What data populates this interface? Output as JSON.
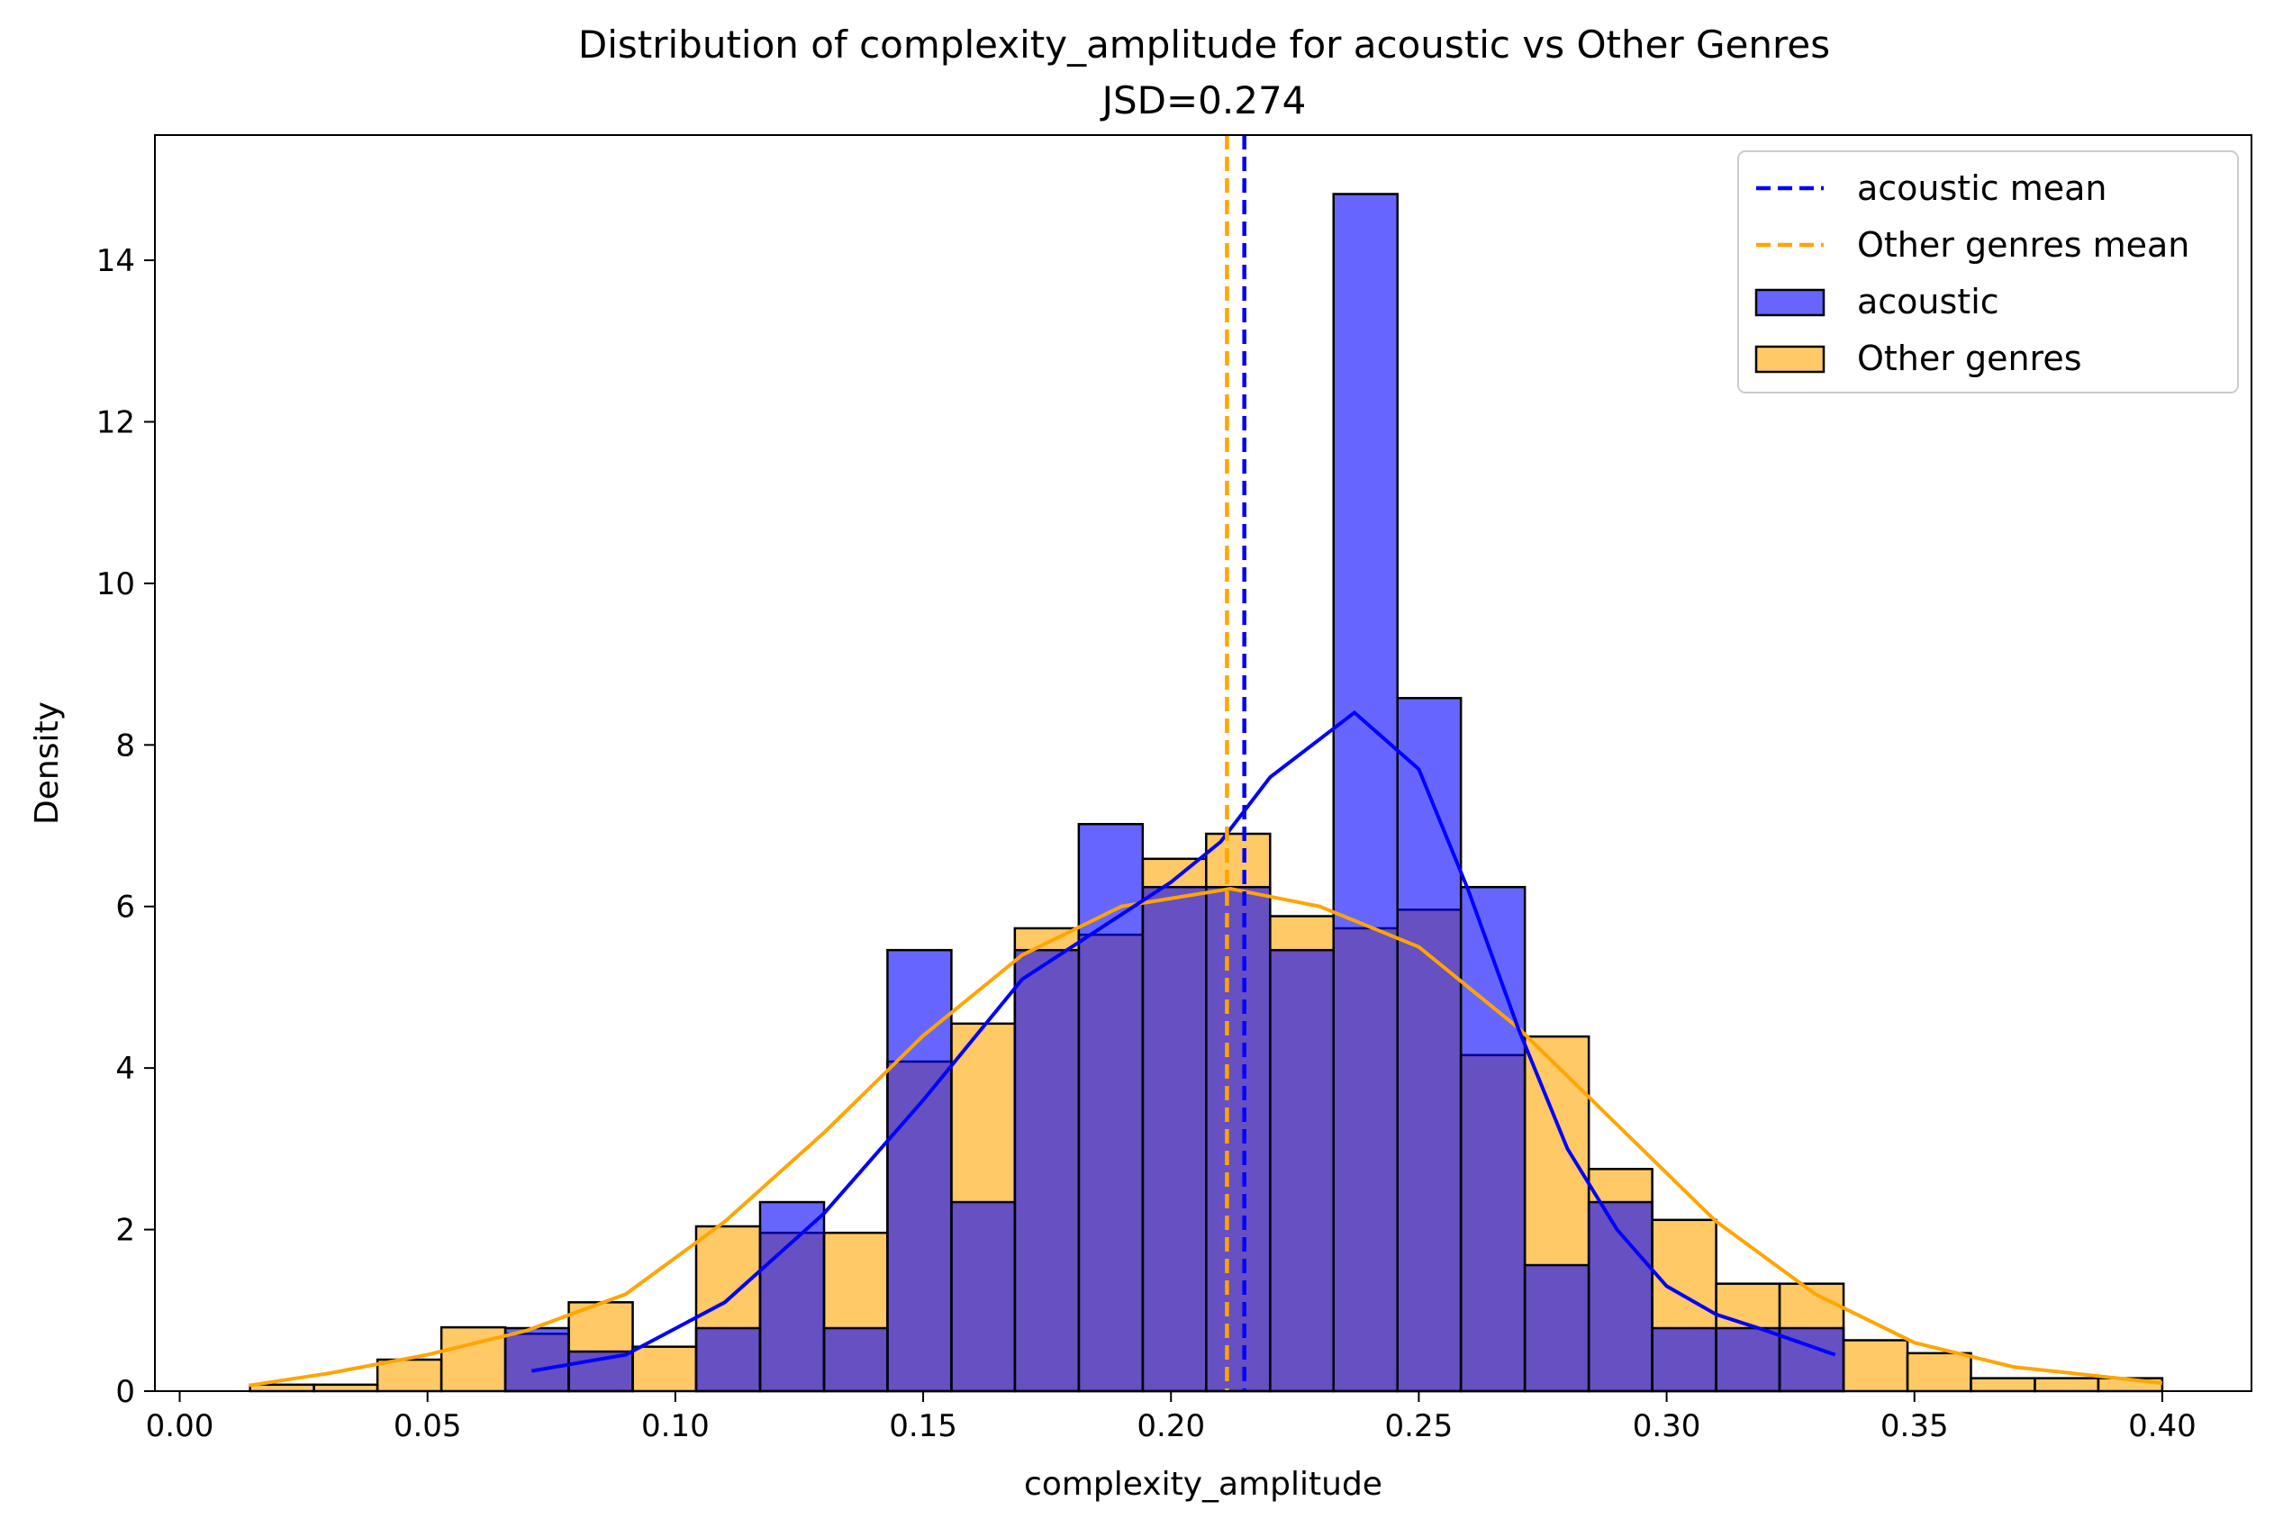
{
  "chart_data": {
    "type": "histogram",
    "title": "Distribution of complexity_amplitude for acoustic vs Other Genres",
    "subtitle": "JSD=0.274",
    "xlabel": "complexity_amplitude",
    "ylabel": "Density",
    "xlim": [
      -0.005,
      0.418
    ],
    "ylim": [
      0,
      15.55
    ],
    "xticks": [
      0.0,
      0.05,
      0.1,
      0.15,
      0.2,
      0.25,
      0.3,
      0.35,
      0.4
    ],
    "xtick_labels": [
      "0.00",
      "0.05",
      "0.10",
      "0.15",
      "0.20",
      "0.25",
      "0.30",
      "0.35",
      "0.40"
    ],
    "yticks": [
      0,
      2,
      4,
      6,
      8,
      10,
      12,
      14
    ],
    "ytick_labels": [
      "0",
      "2",
      "4",
      "6",
      "8",
      "10",
      "12",
      "14"
    ],
    "bin_edges": [
      0.0142,
      0.0271,
      0.0399,
      0.0528,
      0.0657,
      0.0785,
      0.0914,
      0.1042,
      0.1171,
      0.13,
      0.1428,
      0.1557,
      0.1685,
      0.1814,
      0.1943,
      0.2071,
      0.22,
      0.2328,
      0.2457,
      0.2585,
      0.2714,
      0.2843,
      0.2971,
      0.31,
      0.3228,
      0.3357,
      0.3486,
      0.3614,
      0.3743,
      0.3871,
      0.4
    ],
    "series": [
      {
        "name": "acoustic",
        "color": "#0000ff",
        "fill_opacity": 0.6,
        "values": [
          0,
          0,
          0,
          0,
          0.78,
          0.49,
          0,
          0.78,
          2.34,
          0.78,
          5.46,
          2.34,
          5.46,
          7.02,
          6.24,
          6.24,
          5.46,
          14.82,
          8.58,
          6.24,
          1.56,
          2.34,
          0.78,
          0.78,
          0.78,
          0,
          0,
          0,
          0,
          0
        ],
        "kde_x": [
          0.071,
          0.09,
          0.11,
          0.13,
          0.15,
          0.17,
          0.19,
          0.2,
          0.21,
          0.22,
          0.237,
          0.25,
          0.26,
          0.27,
          0.28,
          0.29,
          0.3,
          0.31,
          0.32,
          0.334
        ],
        "kde_y": [
          0.25,
          0.45,
          1.1,
          2.2,
          3.6,
          5.1,
          5.9,
          6.3,
          6.8,
          7.6,
          8.4,
          7.7,
          6.2,
          4.5,
          3.0,
          2.0,
          1.3,
          0.95,
          0.75,
          0.45
        ],
        "mean": 0.2148
      },
      {
        "name": "Other genres",
        "color": "#ffa500",
        "fill_opacity": 0.6,
        "values": [
          0.08,
          0.08,
          0.39,
          0.79,
          0.71,
          1.1,
          0.55,
          2.04,
          1.96,
          1.96,
          4.08,
          4.55,
          5.73,
          5.65,
          6.59,
          6.9,
          5.88,
          5.73,
          5.96,
          4.16,
          4.39,
          2.75,
          2.12,
          1.33,
          1.33,
          0.63,
          0.47,
          0.16,
          0.16,
          0.16
        ],
        "kde_x": [
          0.014,
          0.03,
          0.05,
          0.07,
          0.09,
          0.11,
          0.13,
          0.15,
          0.17,
          0.19,
          0.212,
          0.23,
          0.25,
          0.27,
          0.29,
          0.31,
          0.33,
          0.35,
          0.37,
          0.4
        ],
        "kde_y": [
          0.07,
          0.22,
          0.45,
          0.75,
          1.2,
          2.1,
          3.2,
          4.4,
          5.4,
          6.0,
          6.22,
          6.0,
          5.5,
          4.5,
          3.3,
          2.1,
          1.2,
          0.6,
          0.3,
          0.1
        ],
        "mean": 0.2113
      }
    ],
    "legend": {
      "position": "top-right",
      "entries": [
        {
          "label": "acoustic mean",
          "style": "dashed-line",
          "color": "#0000ff"
        },
        {
          "label": "Other genres mean",
          "style": "dashed-line",
          "color": "#ffa500"
        },
        {
          "label": "acoustic",
          "style": "patch",
          "color": "#0000ff"
        },
        {
          "label": "Other genres",
          "style": "patch",
          "color": "#ffa500"
        }
      ]
    },
    "grid": false
  }
}
